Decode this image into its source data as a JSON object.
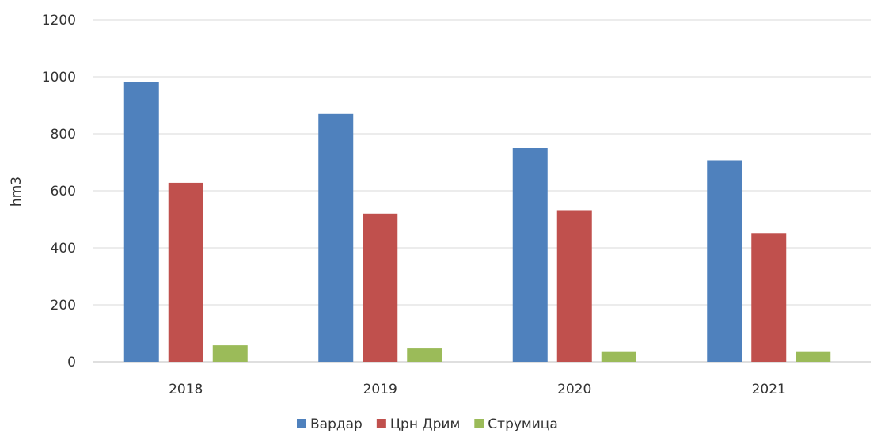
{
  "chart_data": {
    "type": "bar",
    "title": "",
    "xlabel": "",
    "ylabel": "hm3",
    "ylim": [
      0,
      1200
    ],
    "yticks": [
      0,
      200,
      400,
      600,
      800,
      1000,
      1200
    ],
    "grid": true,
    "legend_position": "bottom",
    "categories": [
      "2018",
      "2019",
      "2020",
      "2021"
    ],
    "series": [
      {
        "name": "Вардар",
        "color": "#4f81bd",
        "values": [
          982,
          870,
          750,
          707
        ]
      },
      {
        "name": "Црн Дрим",
        "color": "#c0504d",
        "values": [
          628,
          520,
          532,
          452
        ]
      },
      {
        "name": "Струмица",
        "color": "#9bbb59",
        "values": [
          58,
          47,
          37,
          37
        ]
      }
    ]
  }
}
